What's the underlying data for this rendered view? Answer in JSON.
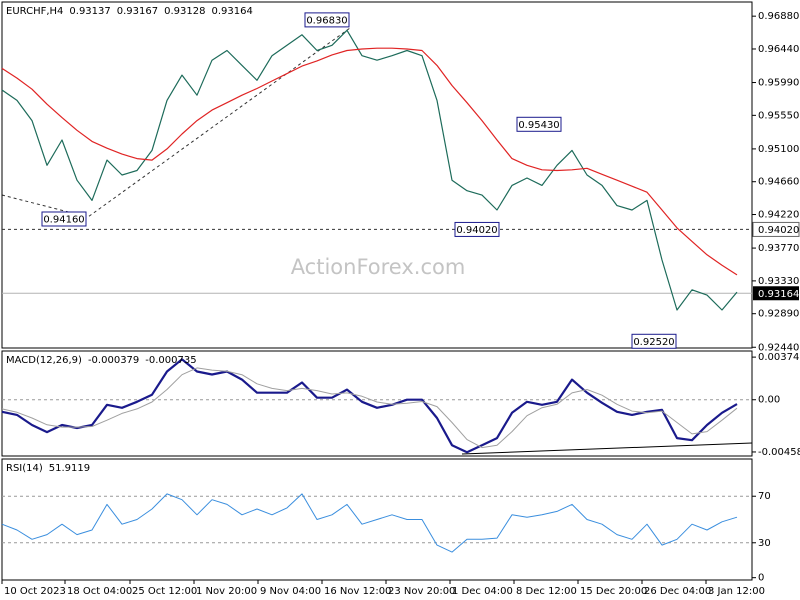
{
  "chart_data": [
    {
      "type": "line",
      "title": "EURCHF,H4",
      "header_values": [
        0.93137,
        0.93167,
        0.93128,
        0.93164
      ],
      "watermark": "ActionForex.com",
      "x": [
        0,
        3,
        6,
        9,
        12,
        15,
        18,
        21,
        24,
        27,
        30,
        33,
        36,
        39,
        42,
        45,
        48,
        51,
        54,
        57,
        60,
        63,
        66,
        69,
        72,
        75,
        78,
        81,
        84,
        87,
        90,
        93,
        96,
        99,
        102,
        105,
        108,
        111,
        114,
        117,
        120,
        123,
        126,
        129,
        132,
        135,
        138,
        141,
        144,
        147
      ],
      "xlim": [
        0,
        150
      ],
      "xticks": [
        {
          "value": 0,
          "label": "10 Oct 2023"
        },
        {
          "value": 12.6,
          "label": "18 Oct 04:00"
        },
        {
          "value": 25.6,
          "label": "25 Oct 12:00"
        },
        {
          "value": 38.4,
          "label": "1 Nov 20:00"
        },
        {
          "value": 51.2,
          "label": "9 Nov 04:00"
        },
        {
          "value": 64,
          "label": "16 Nov 12:00"
        },
        {
          "value": 76.8,
          "label": "23 Nov 20:00"
        },
        {
          "value": 89.6,
          "label": "1 Dec 04:00"
        },
        {
          "value": 102.4,
          "label": "8 Dec 12:00"
        },
        {
          "value": 115.2,
          "label": "15 Dec 20:00"
        },
        {
          "value": 128,
          "label": "26 Dec 04:00"
        },
        {
          "value": 140.8,
          "label": "3 Jan 12:00"
        }
      ],
      "ylim": [
        0.9243,
        0.9707
      ],
      "yticks": [
        {
          "value": 0.9688,
          "label": "0.96880"
        },
        {
          "value": 0.9644,
          "label": "0.96440"
        },
        {
          "value": 0.9599,
          "label": "0.95990"
        },
        {
          "value": 0.9555,
          "label": "0.95550"
        },
        {
          "value": 0.951,
          "label": "0.95100"
        },
        {
          "value": 0.9466,
          "label": "0.94660"
        },
        {
          "value": 0.9422,
          "label": "0.94220"
        },
        {
          "value": 0.9377,
          "label": "0.93770"
        },
        {
          "value": 0.9333,
          "label": "0.93330"
        },
        {
          "value": 0.9289,
          "label": "0.92890"
        },
        {
          "value": 0.9244,
          "label": "0.92440"
        }
      ],
      "series": [
        {
          "color": "#1d6b5a",
          "values": [
            0.9589,
            0.9575,
            0.9548,
            0.9488,
            0.9522,
            0.9468,
            0.9441,
            0.9495,
            0.9475,
            0.9481,
            0.9508,
            0.9575,
            0.9609,
            0.9582,
            0.9629,
            0.9642,
            0.9622,
            0.9602,
            0.9635,
            0.9649,
            0.9663,
            0.9642,
            0.9649,
            0.9669,
            0.9635,
            0.9629,
            0.9635,
            0.9642,
            0.9635,
            0.9575,
            0.9468,
            0.9454,
            0.9448,
            0.9428,
            0.9461,
            0.9471,
            0.9461,
            0.9488,
            0.9508,
            0.9475,
            0.9461,
            0.9434,
            0.9428,
            0.9441,
            0.9361,
            0.9294,
            0.9321,
            0.9314,
            0.9294,
            0.9318
          ]
        },
        {
          "color": "#e02424",
          "values": [
            0.9618,
            0.9605,
            0.959,
            0.957,
            0.9552,
            0.9535,
            0.952,
            0.9511,
            0.9503,
            0.9497,
            0.9495,
            0.951,
            0.953,
            0.9548,
            0.9562,
            0.9572,
            0.9582,
            0.9591,
            0.9601,
            0.9611,
            0.9621,
            0.9628,
            0.9636,
            0.9642,
            0.9644,
            0.9645,
            0.9645,
            0.9644,
            0.9642,
            0.9622,
            0.9595,
            0.9572,
            0.9548,
            0.9522,
            0.9497,
            0.9488,
            0.9482,
            0.9481,
            0.9482,
            0.9484,
            0.9476,
            0.9468,
            0.946,
            0.9452,
            0.9428,
            0.9404,
            0.9386,
            0.9368,
            0.9354,
            0.9341
          ]
        }
      ],
      "annotations": [
        {
          "text": "0.96830",
          "value": 0.9683,
          "x": 69.6
        },
        {
          "text": "0.94160",
          "value": 0.9416,
          "x": 17
        },
        {
          "text": "0.95430",
          "value": 0.9543,
          "x": 112
        },
        {
          "text": "0.94020",
          "value": 0.9402,
          "x": 99.6
        },
        {
          "text": "0.92520",
          "value": 0.9252,
          "x": 135
        }
      ],
      "hline": {
        "value": 0.9402,
        "label": "0.94020"
      },
      "last_price": {
        "value": 0.93164,
        "label": "0.93164"
      }
    },
    {
      "type": "line",
      "title": "MACD(12,26,9)",
      "header_values": [
        -0.000379,
        -0.000735
      ],
      "ylim": [
        -0.00494,
        0.00428
      ],
      "yticks": [
        0.003743,
        {
          "value": 0,
          "label": "0.00"
        },
        -0.004585
      ],
      "zero_line": true,
      "series": [
        {
          "color": "#1a1a8c",
          "width": 2.2,
          "values": [
            -0.00106,
            -0.00133,
            -0.00222,
            -0.00284,
            -0.00222,
            -0.00248,
            -0.00222,
            -0.00044,
            -0.00071,
            -0.00018,
            0.00044,
            0.00248,
            0.00355,
            0.00248,
            0.00222,
            0.00248,
            0.00177,
            0.00062,
            0.00062,
            0.00062,
            0.00151,
            0.00018,
            0.00018,
            0.00089,
            -0.00018,
            -0.00071,
            -0.00044,
            0,
            0,
            -0.0016,
            -0.00399,
            -0.00461,
            -0.00399,
            -0.00337,
            -0.00115,
            -0.00018,
            -0.00044,
            -0.00018,
            0.00177,
            0.00062,
            -0.00027,
            -0.00106,
            -0.00133,
            -0.00106,
            -0.00089,
            -0.00337,
            -0.00355,
            -0.00222,
            -0.00115,
            -0.00038
          ]
        },
        {
          "color": "#a0a0a0",
          "width": 1,
          "values": [
            -0.0008,
            -0.0011,
            -0.0016,
            -0.0022,
            -0.0024,
            -0.0024,
            -0.00235,
            -0.0018,
            -0.0012,
            -0.0008,
            -0.0002,
            0.0009,
            0.0022,
            0.0028,
            0.0026,
            0.0025,
            0.0022,
            0.0014,
            0.001,
            0.0008,
            0.001,
            0.0008,
            0.0005,
            0.0006,
            0.0003,
            -0.0002,
            -0.0004,
            -0.0003,
            -0.00015,
            -0.0006,
            -0.002,
            -0.0035,
            -0.0042,
            -0.004,
            -0.0028,
            -0.0014,
            -0.0007,
            -0.0004,
            0.0006,
            0.0009,
            0.0004,
            -0.0004,
            -0.001,
            -0.00115,
            -0.001,
            -0.002,
            -0.003,
            -0.0028,
            -0.0018,
            -0.00074
          ]
        }
      ]
    },
    {
      "type": "line",
      "title": "RSI(14)",
      "header_values": [
        51.9119
      ],
      "ylim": [
        -2,
        102
      ],
      "yticks": [
        70,
        30,
        0
      ],
      "levels": [
        70,
        30
      ],
      "series": [
        {
          "color": "#3a8ede",
          "width": 1,
          "values": [
            46,
            41,
            33,
            37,
            46,
            37,
            41,
            63,
            46,
            50,
            59,
            72,
            67,
            54,
            67,
            63,
            54,
            59,
            54,
            60,
            72,
            50,
            54,
            63,
            46,
            50,
            54,
            50,
            50,
            28,
            22,
            33,
            33,
            34,
            54,
            52,
            54,
            57,
            63,
            50,
            46,
            37,
            33,
            46,
            28,
            33,
            46,
            41,
            48,
            52
          ]
        }
      ]
    }
  ]
}
